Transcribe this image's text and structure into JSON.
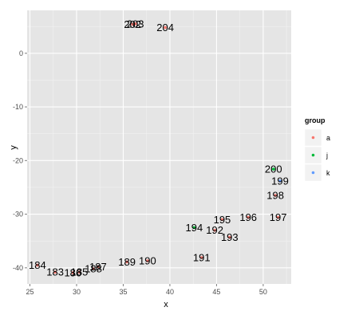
{
  "chart_data": {
    "type": "scatter",
    "xlabel": "x",
    "ylabel": "y",
    "xlim": [
      24.7,
      53.0
    ],
    "ylim": [
      -43.0,
      8.0
    ],
    "x_ticks": [
      25,
      30,
      35,
      40,
      45,
      50
    ],
    "y_ticks": [
      0,
      -10,
      -20,
      -30,
      -40
    ],
    "grid": true,
    "legend_position": "right",
    "legend": {
      "title": "group",
      "entries": [
        {
          "name": "a",
          "color": "#f8766d"
        },
        {
          "name": "j",
          "color": "#00ba38"
        },
        {
          "name": "k",
          "color": "#619cff"
        }
      ]
    },
    "points": [
      {
        "label": "184",
        "x": 25.8,
        "y": -39.5,
        "group": "a"
      },
      {
        "label": "183",
        "x": 27.7,
        "y": -40.8,
        "group": "a"
      },
      {
        "label": "186",
        "x": 29.6,
        "y": -40.9,
        "group": "a"
      },
      {
        "label": "185",
        "x": 30.3,
        "y": -40.8,
        "group": "a"
      },
      {
        "label": "188",
        "x": 31.8,
        "y": -40.2,
        "group": "a"
      },
      {
        "label": "187",
        "x": 32.3,
        "y": -39.8,
        "group": "a"
      },
      {
        "label": "189",
        "x": 35.4,
        "y": -38.9,
        "group": "a"
      },
      {
        "label": "190",
        "x": 37.6,
        "y": -38.7,
        "group": "a"
      },
      {
        "label": "191",
        "x": 43.4,
        "y": -38.1,
        "group": "a"
      },
      {
        "label": "194",
        "x": 42.6,
        "y": -32.5,
        "group": "j"
      },
      {
        "label": "192",
        "x": 44.8,
        "y": -33.0,
        "group": "a"
      },
      {
        "label": "193",
        "x": 46.4,
        "y": -34.3,
        "group": "a"
      },
      {
        "label": "195",
        "x": 45.6,
        "y": -31.0,
        "group": "a"
      },
      {
        "label": "196",
        "x": 48.4,
        "y": -30.6,
        "group": "a"
      },
      {
        "label": "197",
        "x": 51.6,
        "y": -30.6,
        "group": "a"
      },
      {
        "label": "198",
        "x": 51.3,
        "y": -26.5,
        "group": "a"
      },
      {
        "label": "199",
        "x": 51.8,
        "y": -23.8,
        "group": "k"
      },
      {
        "label": "200",
        "x": 51.1,
        "y": -21.6,
        "group": "j"
      },
      {
        "label": "202",
        "x": 36.0,
        "y": 5.4,
        "group": "a"
      },
      {
        "label": "203",
        "x": 36.3,
        "y": 5.5,
        "group": "a"
      },
      {
        "label": "204",
        "x": 39.5,
        "y": 4.8,
        "group": "a"
      }
    ]
  }
}
